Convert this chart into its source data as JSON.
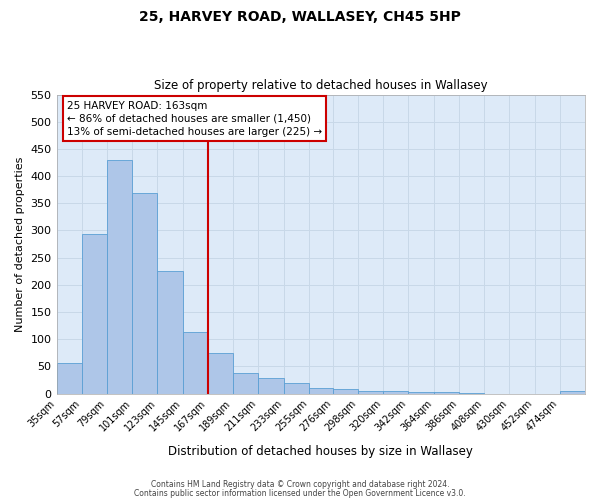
{
  "title_line1": "25, HARVEY ROAD, WALLASEY, CH45 5HP",
  "title_line2": "Size of property relative to detached houses in Wallasey",
  "bar_labels": [
    "35sqm",
    "57sqm",
    "79sqm",
    "101sqm",
    "123sqm",
    "145sqm",
    "167sqm",
    "189sqm",
    "211sqm",
    "233sqm",
    "255sqm",
    "276sqm",
    "298sqm",
    "320sqm",
    "342sqm",
    "364sqm",
    "386sqm",
    "408sqm",
    "430sqm",
    "452sqm",
    "474sqm"
  ],
  "bar_values": [
    57,
    293,
    430,
    368,
    226,
    113,
    75,
    38,
    28,
    19,
    10,
    8,
    5,
    5,
    3,
    3,
    1,
    0,
    0,
    0,
    5
  ],
  "bin_edges": [
    35,
    57,
    79,
    101,
    123,
    145,
    167,
    189,
    211,
    233,
    255,
    276,
    298,
    320,
    342,
    364,
    386,
    408,
    430,
    452,
    474,
    496
  ],
  "bar_color": "#aec6e8",
  "bar_edgecolor": "#5a9fd4",
  "vline_x": 167,
  "vline_color": "#cc0000",
  "ylabel": "Number of detached properties",
  "xlabel": "Distribution of detached houses by size in Wallasey",
  "ylim": [
    0,
    550
  ],
  "yticks": [
    0,
    50,
    100,
    150,
    200,
    250,
    300,
    350,
    400,
    450,
    500,
    550
  ],
  "annotation_text": "25 HARVEY ROAD: 163sqm\n← 86% of detached houses are smaller (1,450)\n13% of semi-detached houses are larger (225) →",
  "annotation_box_edgecolor": "#cc0000",
  "annotation_box_facecolor": "#ffffff",
  "grid_color": "#c8d8e8",
  "background_color": "#ddeaf8",
  "fig_facecolor": "#ffffff",
  "footer_line1": "Contains HM Land Registry data © Crown copyright and database right 2024.",
  "footer_line2": "Contains public sector information licensed under the Open Government Licence v3.0."
}
